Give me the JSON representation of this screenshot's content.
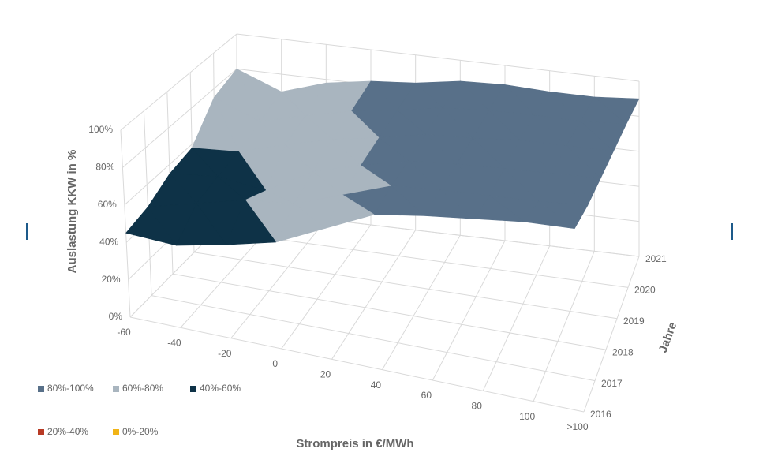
{
  "chart_data": {
    "type": "surface3d",
    "x_label": "Strompreis in €/MWh",
    "y_label": "Jahre",
    "z_label": "Auslastung KKW in %",
    "categories": [
      "-60",
      "-40",
      "-20",
      "0",
      "20",
      "40",
      "60",
      "80",
      "100",
      ">100"
    ],
    "years": [
      "2016",
      "2017",
      "2018",
      "2019",
      "2020",
      "2021"
    ],
    "values": [
      [
        45,
        44,
        50,
        57,
        70,
        83,
        88,
        92,
        96,
        98
      ],
      [
        48,
        55,
        62,
        65,
        75,
        85,
        88,
        90,
        92,
        95
      ],
      [
        55,
        58,
        55,
        70,
        78,
        85,
        88,
        90,
        92,
        94
      ],
      [
        58,
        60,
        68,
        75,
        80,
        86,
        88,
        91,
        92,
        93
      ],
      [
        75,
        65,
        72,
        78,
        82,
        87,
        89,
        90,
        90,
        92
      ],
      [
        80,
        70,
        78,
        82,
        84,
        88,
        89,
        88,
        88,
        90
      ]
    ],
    "zlim": [
      0,
      100
    ],
    "zticks": [
      {
        "value": 0,
        "label": "0%"
      },
      {
        "value": 20,
        "label": "20%"
      },
      {
        "value": 40,
        "label": "40%"
      },
      {
        "value": 60,
        "label": "60%"
      },
      {
        "value": 80,
        "label": "80%"
      },
      {
        "value": 100,
        "label": "100%"
      }
    ],
    "bands": [
      {
        "name": "80%-100%",
        "color": "#587089",
        "range": [
          80,
          100
        ]
      },
      {
        "name": "60%-80%",
        "color": "#a9b5bf",
        "range": [
          60,
          80
        ]
      },
      {
        "name": "40%-60%",
        "color": "#0e3247",
        "range": [
          40,
          60
        ]
      },
      {
        "name": "20%-40%",
        "color": "#b83a24",
        "range": [
          20,
          40
        ]
      },
      {
        "name": "0%-20%",
        "color": "#f1b417",
        "range": [
          0,
          20
        ]
      }
    ],
    "grid": true
  }
}
